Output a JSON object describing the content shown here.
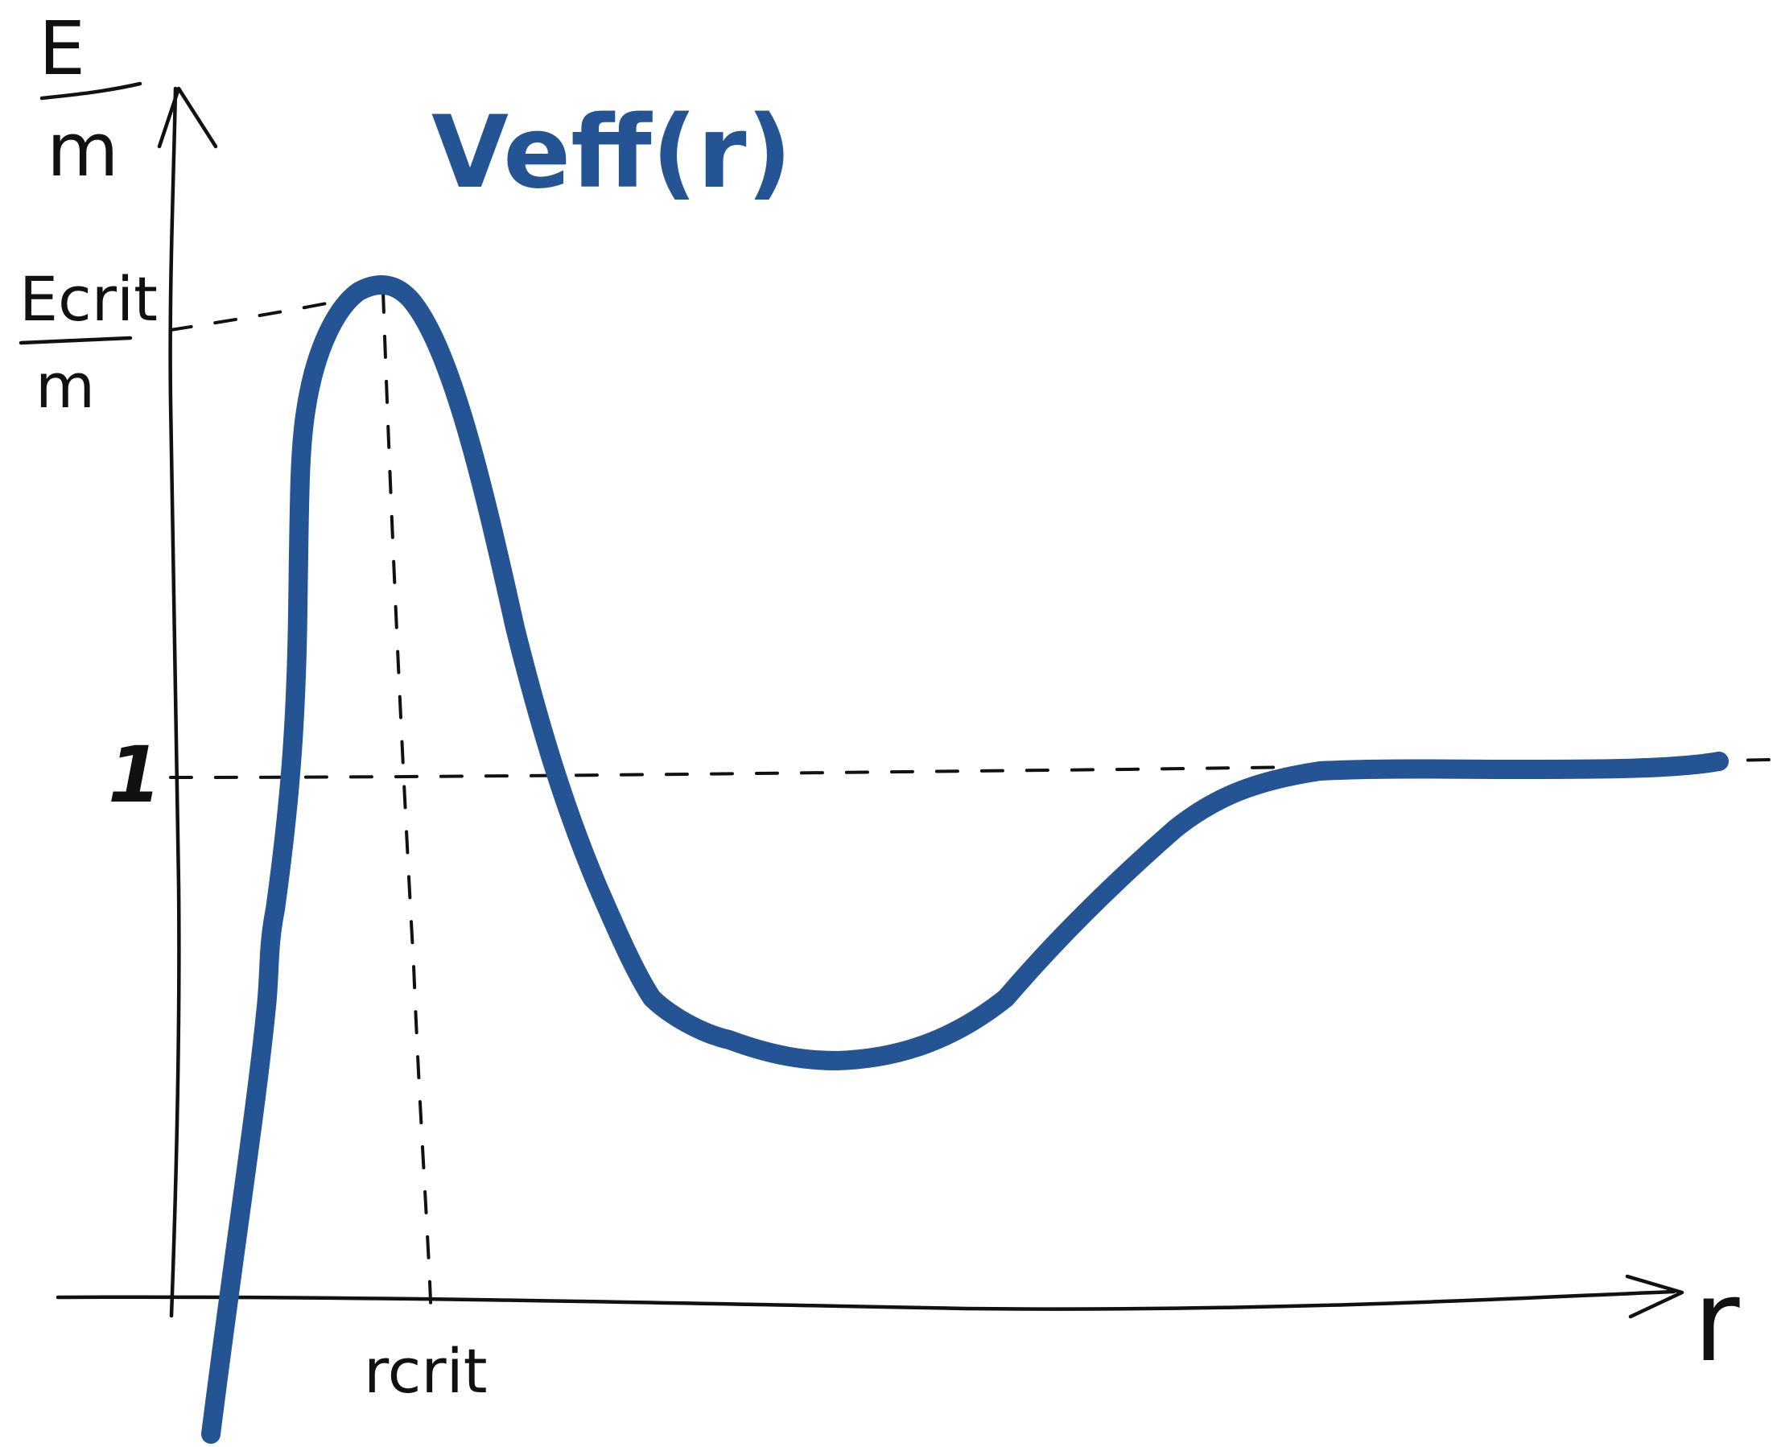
{
  "diagram": {
    "curve_label": "Veff(r)",
    "curve_color": "#245493",
    "ink_color": "#111111",
    "y_axis_label": {
      "numerator": "E",
      "denominator": "m"
    },
    "x_axis_label": "r",
    "y_marks": {
      "critical_energy": {
        "numerator": "Ecrit",
        "denominator": "m"
      },
      "unit_level": "1"
    },
    "x_marks": {
      "critical_radius": "rcrit"
    }
  }
}
